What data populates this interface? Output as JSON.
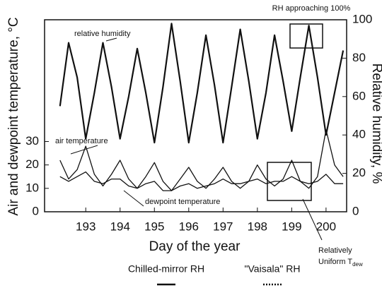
{
  "chart_data": {
    "type": "line",
    "xlabel": "Day of the year",
    "ylabel": "Air and dewpoint temperature, °C",
    "y2label": "Relative humidity, %",
    "xlim": [
      191.8,
      200.6
    ],
    "xticks": [
      193,
      194,
      195,
      196,
      197,
      198,
      199,
      200
    ],
    "ylim": [
      0,
      82
    ],
    "yticks": [
      0,
      10,
      20,
      30
    ],
    "y2lim": [
      0,
      100
    ],
    "y2ticks": [
      0,
      20,
      40,
      60,
      80,
      100
    ],
    "x": [
      192.25,
      192.5,
      192.75,
      193,
      193.25,
      193.5,
      193.75,
      194,
      194.25,
      194.5,
      194.75,
      195,
      195.25,
      195.5,
      195.75,
      196,
      196.25,
      196.5,
      196.75,
      197,
      197.25,
      197.5,
      197.75,
      198,
      198.25,
      198.5,
      198.75,
      199,
      199.25,
      199.5,
      199.75,
      200,
      200.25,
      200.5
    ],
    "series": [
      {
        "name": "relative humidity",
        "color": "#111111",
        "axis": "y2",
        "values": [
          55,
          88,
          70,
          38,
          62,
          88,
          65,
          38,
          60,
          85,
          62,
          36,
          65,
          98,
          68,
          36,
          62,
          92,
          66,
          36,
          65,
          95,
          68,
          38,
          62,
          92,
          68,
          42,
          70,
          97,
          70,
          40,
          62,
          84
        ]
      },
      {
        "name": "air temperature",
        "color": "#111111",
        "values": [
          22,
          14,
          18,
          28,
          16,
          11,
          16,
          22,
          14,
          10,
          15,
          21,
          13,
          9,
          14,
          19,
          13,
          10,
          14,
          19,
          13,
          10,
          13,
          20,
          14,
          11,
          14,
          22,
          13,
          10,
          15,
          35,
          20,
          15
        ]
      },
      {
        "name": "dewpoint temperature",
        "color": "#111111",
        "values": [
          15,
          13,
          15,
          17,
          13,
          12,
          14,
          14,
          11,
          10,
          12,
          13,
          9,
          9,
          11,
          12,
          10,
          11,
          12,
          14,
          12,
          12,
          13,
          14,
          12,
          13,
          13,
          15,
          13,
          12,
          13,
          16,
          12,
          12
        ]
      }
    ],
    "annotations": {
      "rh_peak": "RH approaching 100%",
      "uniform_1": "Relatively",
      "uniform_2": "Uniform T",
      "uniform_sub": "dew"
    },
    "legend": [
      {
        "name": "Chilled-mirror RH",
        "style": "solid"
      },
      {
        "name": "\"Vaisala\" RH",
        "style": "dotted"
      }
    ]
  }
}
